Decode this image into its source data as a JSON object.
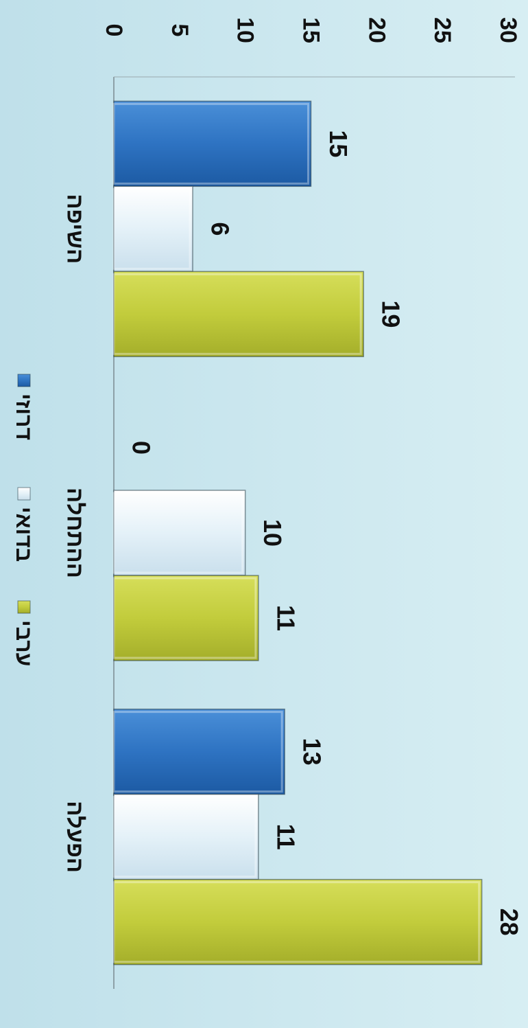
{
  "chart_data": {
    "type": "bar",
    "categories": [
      "השיפה",
      "ההתחלה",
      "הפעלה"
    ],
    "series": [
      {
        "name": "דרוזי",
        "values": [
          15,
          0,
          13
        ],
        "color": "#2e73c2"
      },
      {
        "name": "בדואי",
        "values": [
          6,
          10,
          11
        ],
        "color": "#e4f1f8"
      },
      {
        "name": "ערבי",
        "values": [
          19,
          11,
          28
        ],
        "color": "#c2cc3c"
      }
    ],
    "ylim": [
      0,
      30
    ],
    "yticks": [
      0,
      5,
      10,
      15,
      20,
      25,
      30
    ],
    "legend": "bottom",
    "grid": false,
    "orientation": "rotated-90-clockwise"
  }
}
